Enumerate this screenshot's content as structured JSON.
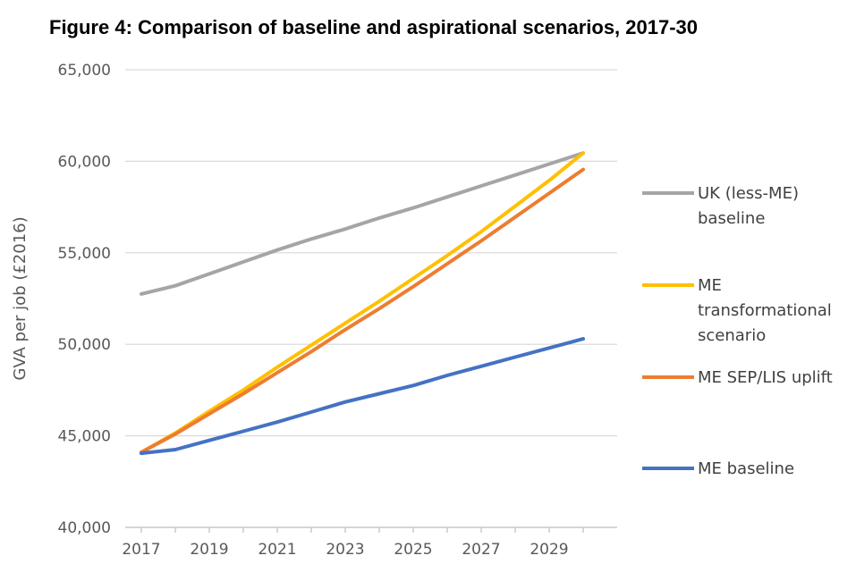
{
  "chart_data": {
    "type": "line",
    "title": "Figure 4: Comparison of baseline and aspirational scenarios, 2017-30",
    "xlabel": "",
    "ylabel": "GVA per job (£2016)",
    "ylim": [
      40000,
      65000
    ],
    "yticks": [
      "40,000",
      "45,000",
      "50,000",
      "55,000",
      "60,000",
      "65,000"
    ],
    "xticks": [
      "2017",
      "2019",
      "2021",
      "2023",
      "2025",
      "2027",
      "2029"
    ],
    "x": [
      2017,
      2018,
      2019,
      2020,
      2021,
      2022,
      2023,
      2024,
      2025,
      2026,
      2027,
      2028,
      2029,
      2030
    ],
    "grid": true,
    "legend_position": "right",
    "series": [
      {
        "name": "UK (less-ME) baseline",
        "legend_lines": [
          "UK (less-ME)",
          "baseline"
        ],
        "color": "#A5A5A5",
        "values": [
          52750,
          53200,
          53850,
          54500,
          55150,
          55750,
          56300,
          56900,
          57450,
          58050,
          58650,
          59250,
          59850,
          60450
        ]
      },
      {
        "name": "ME transformational scenario",
        "legend_lines": [
          "ME",
          "transformational",
          "scenario"
        ],
        "color": "#FFC000",
        "values": [
          44100,
          45150,
          46350,
          47500,
          48750,
          49950,
          51150,
          52350,
          53600,
          54850,
          56150,
          57550,
          58950,
          60450
        ]
      },
      {
        "name": "ME SEP/LIS uplift",
        "legend_lines": [
          "ME SEP/LIS uplift"
        ],
        "color": "#ED7D31",
        "values": [
          44100,
          45100,
          46200,
          47300,
          48450,
          49600,
          50800,
          51950,
          53150,
          54400,
          55650,
          56950,
          58250,
          59550
        ]
      },
      {
        "name": "ME baseline",
        "legend_lines": [
          "ME baseline"
        ],
        "color": "#4472C4",
        "values": [
          44050,
          44250,
          44750,
          45250,
          45750,
          46300,
          46850,
          47300,
          47750,
          48300,
          48800,
          49300,
          49800,
          50300
        ]
      }
    ]
  }
}
